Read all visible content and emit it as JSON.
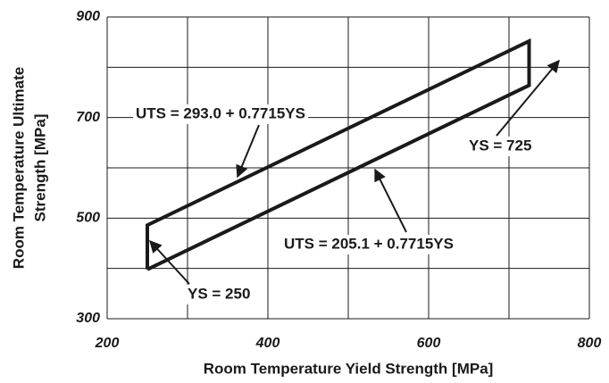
{
  "chart_data": {
    "type": "line",
    "xlabel": "Room Temperature Yield Strength  [MPa]",
    "ylabel": [
      "Room Temperature Ultimate",
      "Strength  [MPa]"
    ],
    "xlim": [
      200,
      800
    ],
    "xticks": [
      200,
      400,
      600,
      800
    ],
    "x_minor_grid": [
      300,
      500,
      700
    ],
    "ylim": [
      300,
      900
    ],
    "yticks": [
      300,
      500,
      700,
      900
    ],
    "y_minor_grid": [
      400,
      600,
      800
    ],
    "grid": true,
    "series": [
      {
        "color": "#1a1a1a",
        "x": [
          250,
          250,
          725,
          725,
          250
        ],
        "values": [
          398,
          486,
          852,
          764,
          398
        ]
      }
    ],
    "annotations": [
      {
        "text": "UTS = 293.0 + 0.7715YS"
      },
      {
        "text": "YS = 725"
      },
      {
        "text": "UTS = 205.1 + 0.7715YS"
      },
      {
        "text": "YS = 250"
      }
    ]
  }
}
